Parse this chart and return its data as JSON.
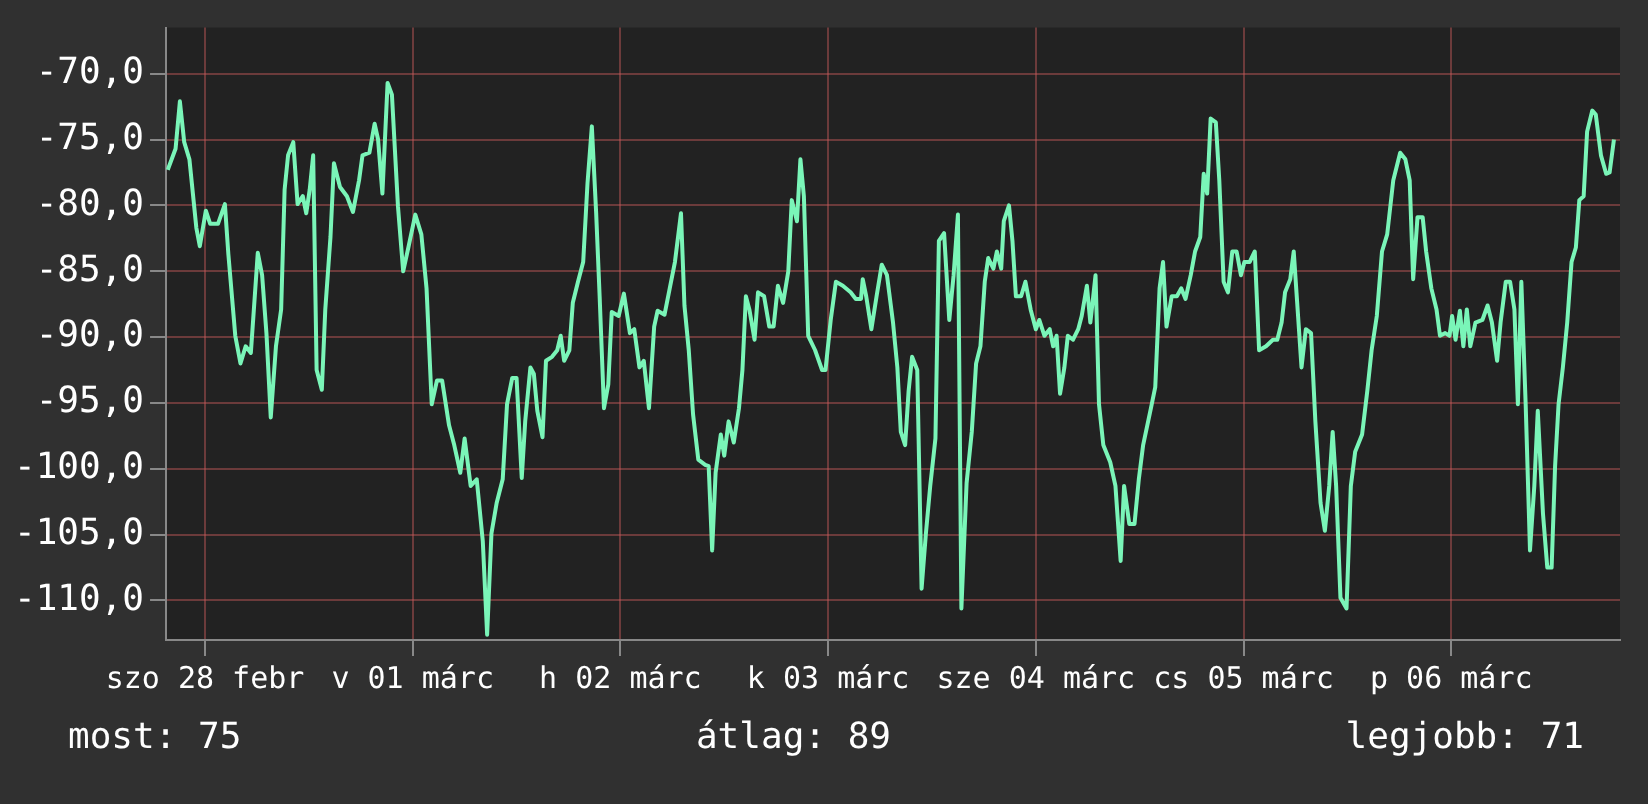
{
  "chart_data": {
    "type": "line",
    "color": "#7af5b8",
    "x": [
      "--02-27T19:42",
      "--02-27T20:36",
      "--02-27T21:06",
      "--02-27T21:36",
      "--02-27T22:12",
      "--02-27T23:00",
      "--02-27T23:24",
      "--02-28T00:06",
      "--02-28T00:36",
      "--02-28T01:30",
      "--02-28T02:18",
      "--02-28T02:42",
      "--02-28T03:30",
      "--02-28T04:06",
      "--02-28T04:42",
      "--02-28T05:18",
      "--02-28T06:06",
      "--02-28T06:36",
      "--02-28T07:06",
      "--02-28T07:36",
      "--02-28T08:12",
      "--02-28T08:48",
      "--02-28T09:12",
      "--02-28T09:36",
      "--02-28T10:12",
      "--02-28T10:42",
      "--02-28T11:18",
      "--02-28T11:42",
      "--02-28T12:06",
      "--02-28T12:30",
      "--02-28T12:54",
      "--02-28T13:30",
      "--02-28T13:54",
      "--02-28T14:30",
      "--02-28T14:54",
      "--02-28T15:36",
      "--02-28T16:24",
      "--02-28T17:06",
      "--02-28T17:48",
      "--02-28T18:12",
      "--02-28T19:00",
      "--02-28T19:36",
      "--02-28T20:00",
      "--02-28T20:30",
      "--02-28T21:06",
      "--02-28T21:36",
      "--02-28T22:18",
      "--02-28T22:54",
      "--02-28T23:30",
      "--03-01T00:18",
      "--03-01T01:00",
      "--03-01T01:36",
      "--03-01T02:12",
      "--03-01T02:48",
      "--03-01T03:24",
      "--03-01T04:12",
      "--03-01T04:48",
      "--03-01T05:30",
      "--03-01T06:00",
      "--03-01T06:42",
      "--03-01T07:24",
      "--03-01T08:06",
      "--03-01T08:36",
      "--03-01T09:06",
      "--03-01T09:42",
      "--03-01T10:24",
      "--03-01T10:54",
      "--03-01T11:30",
      "--03-01T12:00",
      "--03-01T12:36",
      "--03-01T13:00",
      "--03-01T13:36",
      "--03-01T14:00",
      "--03-01T14:24",
      "--03-01T15:00",
      "--03-01T15:24",
      "--03-01T16:06",
      "--03-01T16:42",
      "--03-01T17:06",
      "--03-01T17:30",
      "--03-01T18:06",
      "--03-01T18:30",
      "--03-01T19:06",
      "--03-01T19:42",
      "--03-01T20:12",
      "--03-01T20:42",
      "--03-01T21:12",
      "--03-01T21:36",
      "--03-01T22:06",
      "--03-01T22:36",
      "--03-01T23:00",
      "--03-01T23:48",
      "--03-02T00:24",
      "--03-02T01:06",
      "--03-02T01:36",
      "--03-02T02:12",
      "--03-02T02:42",
      "--03-02T03:18",
      "--03-02T03:54",
      "--03-02T04:18",
      "--03-02T05:06",
      "--03-02T05:42",
      "--03-02T06:18",
      "--03-02T07:00",
      "--03-02T07:24",
      "--03-02T07:54",
      "--03-02T08:24",
      "--03-02T09:00",
      "--03-02T09:48",
      "--03-02T10:12",
      "--03-02T10:36",
      "--03-02T11:00",
      "--03-02T11:36",
      "--03-02T12:00",
      "--03-02T12:30",
      "--03-02T13:06",
      "--03-02T13:42",
      "--03-02T14:06",
      "--03-02T14:30",
      "--03-02T14:54",
      "--03-02T15:30",
      "--03-02T15:54",
      "--03-02T16:36",
      "--03-02T17:12",
      "--03-02T17:42",
      "--03-02T18:12",
      "--03-02T18:48",
      "--03-02T19:24",
      "--03-02T19:48",
      "--03-02T20:24",
      "--03-02T20:48",
      "--03-02T21:12",
      "--03-02T21:42",
      "--03-02T22:30",
      "--03-02T23:18",
      "--03-02T23:42",
      "--03-03T00:18",
      "--03-03T00:54",
      "--03-03T01:42",
      "--03-03T02:36",
      "--03-03T03:12",
      "--03-03T03:48",
      "--03-03T04:00",
      "--03-03T04:24",
      "--03-03T05:00",
      "--03-03T05:36",
      "--03-03T06:12",
      "--03-03T06:48",
      "--03-03T07:30",
      "--03-03T08:00",
      "--03-03T08:24",
      "--03-03T08:54",
      "--03-03T09:18",
      "--03-03T09:42",
      "--03-03T10:18",
      "--03-03T10:48",
      "--03-03T11:18",
      "--03-03T11:48",
      "--03-03T12:24",
      "--03-03T12:48",
      "--03-03T13:24",
      "--03-03T14:00",
      "--03-03T14:30",
      "--03-03T15:00",
      "--03-03T15:24",
      "--03-03T16:00",
      "--03-03T16:36",
      "--03-03T17:06",
      "--03-03T17:36",
      "--03-03T18:06",
      "--03-03T18:30",
      "--03-03T19:06",
      "--03-03T19:30",
      "--03-03T20:00",
      "--03-03T20:18",
      "--03-03T20:54",
      "--03-03T21:18",
      "--03-03T21:42",
      "--03-03T22:18",
      "--03-03T22:48",
      "--03-03T23:24",
      "--03-04T00:00",
      "--03-04T00:24",
      "--03-04T01:00",
      "--03-04T01:36",
      "--03-04T02:00",
      "--03-04T02:24",
      "--03-04T02:48",
      "--03-04T03:18",
      "--03-04T03:42",
      "--03-04T04:18",
      "--03-04T04:54",
      "--03-04T05:18",
      "--03-04T05:54",
      "--03-04T06:18",
      "--03-04T06:54",
      "--03-04T07:18",
      "--03-04T07:48",
      "--03-04T08:36",
      "--03-04T09:12",
      "--03-04T09:48",
      "--03-04T10:12",
      "--03-04T10:48",
      "--03-04T11:24",
      "--03-04T11:54",
      "--03-04T12:24",
      "--03-04T13:18",
      "--03-04T13:48",
      "--03-04T14:18",
      "--03-04T14:42",
      "--03-04T15:06",
      "--03-04T15:42",
      "--03-04T16:18",
      "--03-04T16:48",
      "--03-04T17:18",
      "--03-04T17:54",
      "--03-04T18:24",
      "--03-04T19:00",
      "--03-04T19:24",
      "--03-04T19:48",
      "--03-04T20:12",
      "--03-04T20:48",
      "--03-04T21:12",
      "--03-04T21:42",
      "--03-04T22:12",
      "--03-04T22:42",
      "--03-04T23:12",
      "--03-04T23:42",
      "--03-05T00:06",
      "--03-05T00:42",
      "--03-05T01:18",
      "--03-05T01:48",
      "--03-05T02:36",
      "--03-05T03:24",
      "--03-05T03:54",
      "--03-05T04:24",
      "--03-05T04:48",
      "--03-05T05:24",
      "--03-05T05:48",
      "--03-05T06:12",
      "--03-05T06:42",
      "--03-05T07:12",
      "--03-05T07:48",
      "--03-05T08:18",
      "--03-05T08:54",
      "--03-05T09:24",
      "--03-05T09:54",
      "--03-05T10:18",
      "--03-05T10:42",
      "--03-05T11:12",
      "--03-05T11:54",
      "--03-05T12:24",
      "--03-05T12:54",
      "--03-05T13:42",
      "--03-05T14:18",
      "--03-05T14:48",
      "--03-05T15:24",
      "--03-05T16:00",
      "--03-05T16:36",
      "--03-05T17:18",
      "--03-05T18:06",
      "--03-05T18:42",
      "--03-05T19:12",
      "--03-05T19:36",
      "--03-05T20:06",
      "--03-05T20:42",
      "--03-05T21:06",
      "--03-05T21:42",
      "--03-05T22:18",
      "--03-05T22:42",
      "--03-05T23:18",
      "--03-05T23:48",
      "--03-06T00:06",
      "--03-06T00:30",
      "--03-06T01:00",
      "--03-06T01:24",
      "--03-06T01:48",
      "--03-06T02:12",
      "--03-06T02:48",
      "--03-06T03:36",
      "--03-06T04:12",
      "--03-06T04:42",
      "--03-06T05:18",
      "--03-06T05:42",
      "--03-06T06:18",
      "--03-06T06:48",
      "--03-06T07:18",
      "--03-06T07:42",
      "--03-06T08:06",
      "--03-06T08:36",
      "--03-06T09:06",
      "--03-06T09:36",
      "--03-06T10:00",
      "--03-06T10:36",
      "--03-06T11:06",
      "--03-06T11:36",
      "--03-06T12:00",
      "--03-06T12:24",
      "--03-06T12:54",
      "--03-06T13:24",
      "--03-06T13:54",
      "--03-06T14:24",
      "--03-06T14:48",
      "--03-06T15:18",
      "--03-06T15:42",
      "--03-06T16:18",
      "--03-06T16:42",
      "--03-06T17:18",
      "--03-06T17:54",
      "--03-06T18:18",
      "--03-06T18:48"
    ],
    "values": [
      -77.3,
      -75.7,
      -72.1,
      -75.2,
      -76.5,
      -81.7,
      -83.1,
      -80.4,
      -81.4,
      -81.4,
      -79.9,
      -83.7,
      -89.9,
      -92.0,
      -90.7,
      -91.2,
      -83.6,
      -85.3,
      -89.7,
      -96.1,
      -90.7,
      -87.9,
      -78.8,
      -76.2,
      -75.2,
      -79.9,
      -79.3,
      -80.6,
      -78.8,
      -76.2,
      -92.5,
      -94.0,
      -87.9,
      -82.4,
      -76.8,
      -78.6,
      -79.3,
      -80.5,
      -78.1,
      -76.2,
      -76.0,
      -73.8,
      -75.0,
      -79.1,
      -70.7,
      -71.6,
      -80.1,
      -85.0,
      -83.2,
      -80.7,
      -82.2,
      -86.3,
      -95.1,
      -93.3,
      -93.3,
      -96.7,
      -98.2,
      -100.3,
      -97.7,
      -101.3,
      -100.8,
      -105.5,
      -112.6,
      -104.9,
      -102.6,
      -100.8,
      -95.1,
      -93.1,
      -93.1,
      -100.7,
      -96.4,
      -92.3,
      -92.8,
      -95.6,
      -97.6,
      -91.8,
      -91.5,
      -91.0,
      -89.9,
      -91.8,
      -91.0,
      -87.4,
      -85.8,
      -84.3,
      -78.3,
      -74.0,
      -80.6,
      -86.9,
      -95.4,
      -93.6,
      -88.1,
      -88.4,
      -86.7,
      -89.7,
      -89.4,
      -92.3,
      -91.8,
      -95.4,
      -89.2,
      -88.0,
      -88.3,
      -86.3,
      -84.3,
      -80.6,
      -87.6,
      -91.0,
      -95.9,
      -99.3,
      -99.7,
      -99.8,
      -106.2,
      -100.3,
      -97.4,
      -99.0,
      -96.4,
      -98.0,
      -95.4,
      -92.5,
      -86.9,
      -87.9,
      -90.2,
      -86.6,
      -86.9,
      -89.2,
      -89.2,
      -86.1,
      -87.4,
      -85.0,
      -79.6,
      -81.2,
      -76.5,
      -79.3,
      -89.9,
      -91.0,
      -92.5,
      -92.5,
      -88.7,
      -85.8,
      -86.1,
      -86.6,
      -87.1,
      -87.1,
      -85.6,
      -86.9,
      -89.4,
      -86.9,
      -84.5,
      -85.3,
      -88.9,
      -92.3,
      -97.2,
      -98.2,
      -94.1,
      -91.5,
      -92.5,
      -109.1,
      -104.9,
      -101.3,
      -97.7,
      -82.7,
      -82.1,
      -88.7,
      -85.3,
      -80.7,
      -110.6,
      -101.1,
      -97.2,
      -92.0,
      -90.7,
      -85.8,
      -84.0,
      -84.8,
      -83.5,
      -84.8,
      -81.2,
      -80.0,
      -82.7,
      -86.9,
      -86.9,
      -85.8,
      -87.9,
      -89.4,
      -88.7,
      -89.9,
      -89.4,
      -90.7,
      -89.9,
      -94.3,
      -92.3,
      -89.9,
      -90.2,
      -89.4,
      -88.4,
      -86.1,
      -88.9,
      -85.3,
      -95.1,
      -98.2,
      -99.5,
      -101.3,
      -107.0,
      -101.3,
      -104.2,
      -104.2,
      -100.8,
      -98.2,
      -95.4,
      -93.8,
      -86.3,
      -84.3,
      -89.2,
      -86.9,
      -86.9,
      -86.3,
      -87.1,
      -85.3,
      -83.5,
      -82.4,
      -77.6,
      -79.1,
      -73.4,
      -73.7,
      -78.1,
      -85.8,
      -86.6,
      -83.5,
      -83.5,
      -85.3,
      -84.3,
      -84.3,
      -83.5,
      -91.0,
      -90.7,
      -90.2,
      -90.2,
      -88.9,
      -86.6,
      -85.6,
      -83.5,
      -87.4,
      -92.3,
      -89.4,
      -89.7,
      -96.4,
      -102.6,
      -104.7,
      -101.3,
      -97.2,
      -101.3,
      -109.8,
      -110.6,
      -101.3,
      -98.7,
      -97.4,
      -94.1,
      -91.0,
      -88.4,
      -83.5,
      -82.2,
      -78.1,
      -76.0,
      -76.5,
      -78.1,
      -85.6,
      -80.9,
      -80.9,
      -83.5,
      -86.3,
      -87.9,
      -89.9,
      -89.7,
      -89.9,
      -88.4,
      -90.2,
      -88.0,
      -90.7,
      -87.9,
      -90.7,
      -88.9,
      -88.7,
      -87.6,
      -88.9,
      -91.8,
      -88.9,
      -85.8,
      -85.8,
      -87.9,
      -95.1,
      -85.8,
      -95.1,
      -106.2,
      -101.3,
      -95.6,
      -103.4,
      -107.5,
      -107.5,
      -99.8,
      -95.1,
      -92.3,
      -88.9,
      -84.3,
      -83.2,
      -79.6,
      -79.3,
      -74.4,
      -72.8,
      -73.1,
      -76.2,
      -77.6,
      -77.5,
      -75.0
    ],
    "xlim": [
      "--02-27T19:30",
      "--03-06T19:30"
    ],
    "xticks": [
      {
        "value": "--02-28",
        "label": "szo 28 febr"
      },
      {
        "value": "--03-01",
        "label": "v 01 márc"
      },
      {
        "value": "--03-02",
        "label": "h 02 márc"
      },
      {
        "value": "--03-03",
        "label": "k 03 márc"
      },
      {
        "value": "--03-04",
        "label": "sze 04 márc"
      },
      {
        "value": "--03-05",
        "label": "cs 05 márc"
      },
      {
        "value": "--03-06",
        "label": "p 06 márc"
      }
    ],
    "ylim": [
      -113,
      -66.5
    ],
    "yticks": [
      {
        "value": -70,
        "label": "-70,0"
      },
      {
        "value": -75,
        "label": "-75,0"
      },
      {
        "value": -80,
        "label": "-80,0"
      },
      {
        "value": -85,
        "label": "-85,0"
      },
      {
        "value": -90,
        "label": "-90,0"
      },
      {
        "value": -95,
        "label": "-95,0"
      },
      {
        "value": -100,
        "label": "-100,0"
      },
      {
        "value": -105,
        "label": "-105,0"
      },
      {
        "value": -110,
        "label": "-110,0"
      }
    ],
    "grid": true,
    "annotations": [
      "most: 75",
      "átlag: 89",
      "legjobb: 71"
    ]
  }
}
